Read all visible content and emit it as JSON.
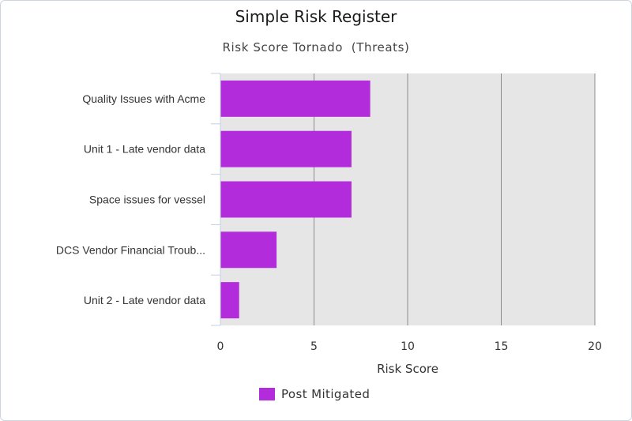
{
  "chart_data": {
    "type": "bar",
    "orientation": "horizontal",
    "title": "Simple Risk Register",
    "subtitle": "Risk Score Tornado  (Threats)",
    "categories": [
      "Quality Issues with Acme",
      "Unit 1 - Late vendor data",
      "Space issues for vessel",
      "DCS Vendor Financial Troub...",
      "Unit 2 - Late vendor data"
    ],
    "series": [
      {
        "name": "Post Mitigated",
        "values": [
          8,
          7,
          7,
          3,
          1
        ],
        "color": "#b22cdc"
      }
    ],
    "xlabel": "Risk Score",
    "ylabel": "",
    "xlim": [
      0,
      20
    ],
    "xticks": [
      "0",
      "5",
      "10",
      "15",
      "20"
    ],
    "grid": true,
    "legend_position": "bottom",
    "plot_background": "#e6e6e6"
  }
}
